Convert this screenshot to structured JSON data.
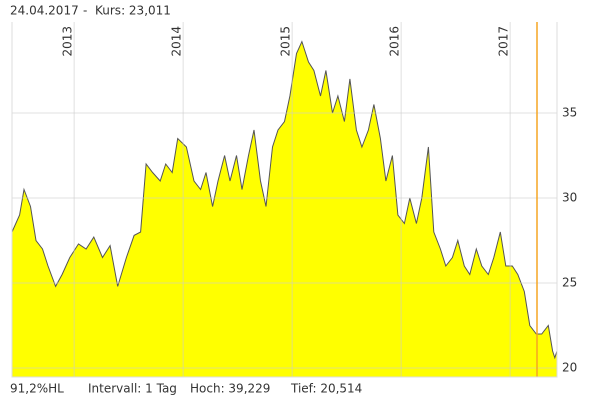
{
  "header": {
    "date": "24.04.2017",
    "separator": "-",
    "price": "Kurs: 23,011"
  },
  "footer": {
    "range": "91,2%HL",
    "interval": "Intervall: 1 Tag",
    "high": "Hoch: 39,229",
    "low": "Tief: 20,514"
  },
  "chart_data": {
    "type": "area",
    "x": [
      2012.43,
      2012.5,
      2012.54,
      2012.6,
      2012.65,
      2012.71,
      2012.76,
      2012.83,
      2012.89,
      2012.96,
      2013.04,
      2013.11,
      2013.18,
      2013.26,
      2013.33,
      2013.4,
      2013.48,
      2013.55,
      2013.61,
      2013.66,
      2013.72,
      2013.79,
      2013.84,
      2013.9,
      2013.95,
      2014.03,
      2014.1,
      2014.16,
      2014.21,
      2014.27,
      2014.32,
      2014.38,
      2014.43,
      2014.49,
      2014.54,
      2014.6,
      2014.65,
      2014.71,
      2014.76,
      2014.82,
      2014.87,
      2014.93,
      2014.98,
      2015.04,
      2015.09,
      2015.15,
      2015.2,
      2015.26,
      2015.31,
      2015.37,
      2015.42,
      2015.48,
      2015.53,
      2015.59,
      2015.64,
      2015.7,
      2015.75,
      2015.81,
      2015.86,
      2015.92,
      2015.97,
      2016.03,
      2016.08,
      2016.14,
      2016.19,
      2016.25,
      2016.3,
      2016.36,
      2016.41,
      2016.47,
      2016.52,
      2016.58,
      2016.63,
      2016.69,
      2016.74,
      2016.8,
      2016.85,
      2016.91,
      2016.96,
      2017.02,
      2017.07,
      2017.13,
      2017.18,
      2017.24,
      2017.29,
      2017.35,
      2017.39,
      2017.41,
      2017.43
    ],
    "series": [
      {
        "color": "#ffff00",
        "values": [
          28,
          29,
          30.5,
          29.5,
          27.5,
          27,
          26,
          24.8,
          25.5,
          26.5,
          27.3,
          27,
          27.7,
          26.5,
          27.2,
          24.8,
          26.5,
          27.8,
          28,
          32,
          31.5,
          31,
          32,
          31.5,
          33.5,
          33,
          31,
          30.5,
          31.5,
          29.5,
          31,
          32.5,
          31,
          32.5,
          30.5,
          32.5,
          34,
          31,
          29.5,
          33,
          34,
          34.5,
          36,
          38.5,
          39.2,
          38,
          37.5,
          36,
          37.5,
          35,
          36,
          34.5,
          37,
          34,
          33,
          34,
          35.5,
          33.5,
          31,
          32.5,
          29,
          28.5,
          30,
          28.5,
          30,
          33,
          28,
          27,
          26,
          26.5,
          27.5,
          26,
          25.5,
          27,
          26,
          25.5,
          26.5,
          28,
          26,
          26,
          25.5,
          24.5,
          22.5,
          22,
          22,
          22.5,
          21,
          20.6,
          21
        ]
      }
    ],
    "xlim": [
      2012.43,
      2017.43
    ],
    "ylim": [
      19.47,
      40.35
    ],
    "xticks": [
      2013,
      2014,
      2015,
      2016,
      2017
    ],
    "yticks": [
      20,
      25,
      30,
      35
    ],
    "grid": true
  }
}
